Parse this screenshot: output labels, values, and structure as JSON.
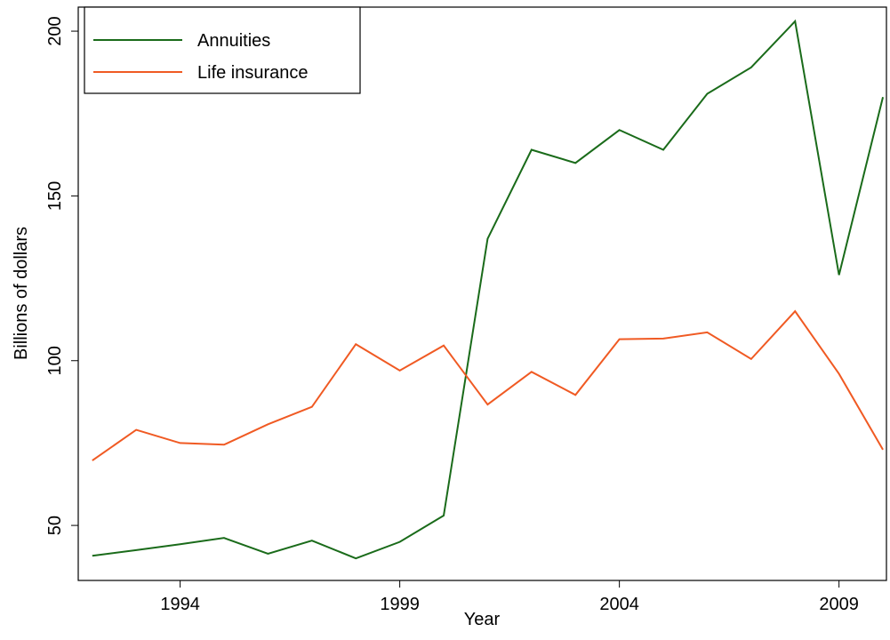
{
  "chart_data": {
    "type": "line",
    "x": [
      1992,
      1993,
      1994,
      1995,
      1996,
      1997,
      1998,
      1999,
      2000,
      2001,
      2002,
      2003,
      2004,
      2005,
      2006,
      2007,
      2008,
      2009,
      2010
    ],
    "series": [
      {
        "name": "Annuities",
        "color": "#1a6b1a",
        "values": [
          40.8,
          42.5,
          44.3,
          46.2,
          41.4,
          45.4,
          40,
          45,
          53,
          137,
          164,
          160,
          170,
          164,
          181,
          189,
          203,
          126,
          180
        ]
      },
      {
        "name": "Life insurance",
        "color": "#f05a23",
        "values": [
          69.7,
          79,
          75,
          74.5,
          80.7,
          86,
          105,
          97,
          104.6,
          86.7,
          96.6,
          89.6,
          106.5,
          106.7,
          108.6,
          100.5,
          115,
          96,
          73
        ]
      }
    ],
    "x_label": "Year",
    "y_label": "Billions of dollars",
    "xlim": [
      1991.68,
      2010.08
    ],
    "xticks": [
      1994,
      1999,
      2004,
      2009
    ],
    "ylim": [
      33.3,
      207.3
    ],
    "yticks": [
      50,
      100,
      150,
      200
    ],
    "legend": "top-left"
  }
}
